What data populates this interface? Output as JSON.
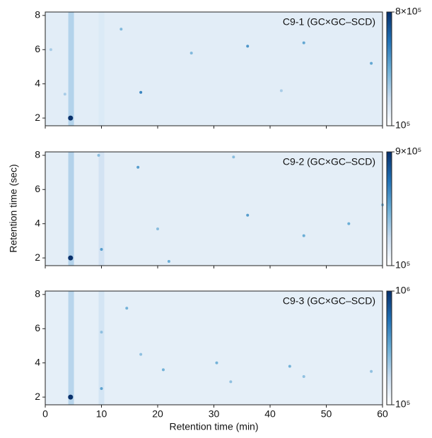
{
  "chart_data": [
    {
      "type": "heatmap",
      "title": "C9-1 (GC×GC–SCD)",
      "xlim": [
        0,
        60
      ],
      "ylim": [
        1.55,
        8.2
      ],
      "xticks": [
        0,
        10,
        20,
        30,
        40,
        50,
        60
      ],
      "yticks": [
        2,
        4,
        6,
        8
      ],
      "background_value": 130000,
      "streaks": {
        "x": [
          4.6,
          10.0
        ],
        "values": [
          200000,
          140000
        ]
      },
      "peaks": {
        "x": [
          4.5,
          17,
          36,
          46,
          58,
          13.5,
          26,
          3.5,
          42,
          1
        ],
        "y": [
          2.0,
          3.5,
          6.2,
          6.4,
          5.2,
          7.2,
          5.8,
          3.4,
          3.6,
          6.0
        ],
        "values": [
          800000,
          400000,
          350000,
          300000,
          300000,
          250000,
          250000,
          200000,
          200000,
          200000
        ]
      },
      "clim": [
        100000,
        800000
      ],
      "log_color": true,
      "cticks": [
        {
          "value": 100000,
          "label": "10⁵"
        },
        {
          "value": 800000,
          "label": "8×10⁵"
        }
      ]
    },
    {
      "type": "heatmap",
      "title": "C9-2 (GC×GC–SCD)",
      "ylabel": "Retention time (sec)",
      "xlim": [
        0,
        60
      ],
      "ylim": [
        1.55,
        8.2
      ],
      "xticks": [
        0,
        10,
        20,
        30,
        40,
        50,
        60
      ],
      "yticks": [
        2,
        4,
        6,
        8
      ],
      "background_value": 130000,
      "streaks": {
        "x": [
          4.6,
          10.0
        ],
        "values": [
          210000,
          160000
        ]
      },
      "peaks": {
        "x": [
          4.5,
          10,
          16.5,
          36,
          46,
          22,
          54,
          33.5,
          9.5,
          20,
          60
        ],
        "y": [
          2.0,
          2.5,
          7.3,
          4.5,
          3.3,
          1.8,
          4.0,
          7.9,
          8.0,
          3.7,
          5.1
        ],
        "values": [
          900000,
          350000,
          350000,
          350000,
          300000,
          300000,
          300000,
          250000,
          250000,
          250000,
          250000
        ]
      },
      "clim": [
        100000,
        900000
      ],
      "log_color": true,
      "cticks": [
        {
          "value": 100000,
          "label": "10⁵"
        },
        {
          "value": 900000,
          "label": "9×10⁵"
        }
      ]
    },
    {
      "type": "heatmap",
      "title": "C9-3 (GC×GC–SCD)",
      "xlabel": "Retention time (min)",
      "xlim": [
        0,
        60
      ],
      "ylim": [
        1.55,
        8.2
      ],
      "xticks": [
        0,
        10,
        20,
        30,
        40,
        50,
        60
      ],
      "yticks": [
        2,
        4,
        6,
        8
      ],
      "background_value": 130000,
      "streaks": {
        "x": [
          4.6,
          10.0
        ],
        "values": [
          210000,
          160000
        ]
      },
      "peaks": {
        "x": [
          4.5,
          10,
          14.5,
          21,
          30.5,
          43.5,
          46,
          33,
          58,
          17,
          10
        ],
        "y": [
          2.0,
          2.5,
          7.2,
          3.6,
          4.0,
          3.8,
          3.2,
          2.9,
          3.5,
          4.5,
          5.8
        ],
        "values": [
          1000000,
          350000,
          300000,
          300000,
          300000,
          300000,
          250000,
          250000,
          250000,
          250000,
          250000
        ]
      },
      "clim": [
        100000,
        1000000
      ],
      "log_color": true,
      "cticks": [
        {
          "value": 100000,
          "label": "10⁵"
        },
        {
          "value": 1000000,
          "label": "10⁶"
        }
      ]
    }
  ]
}
